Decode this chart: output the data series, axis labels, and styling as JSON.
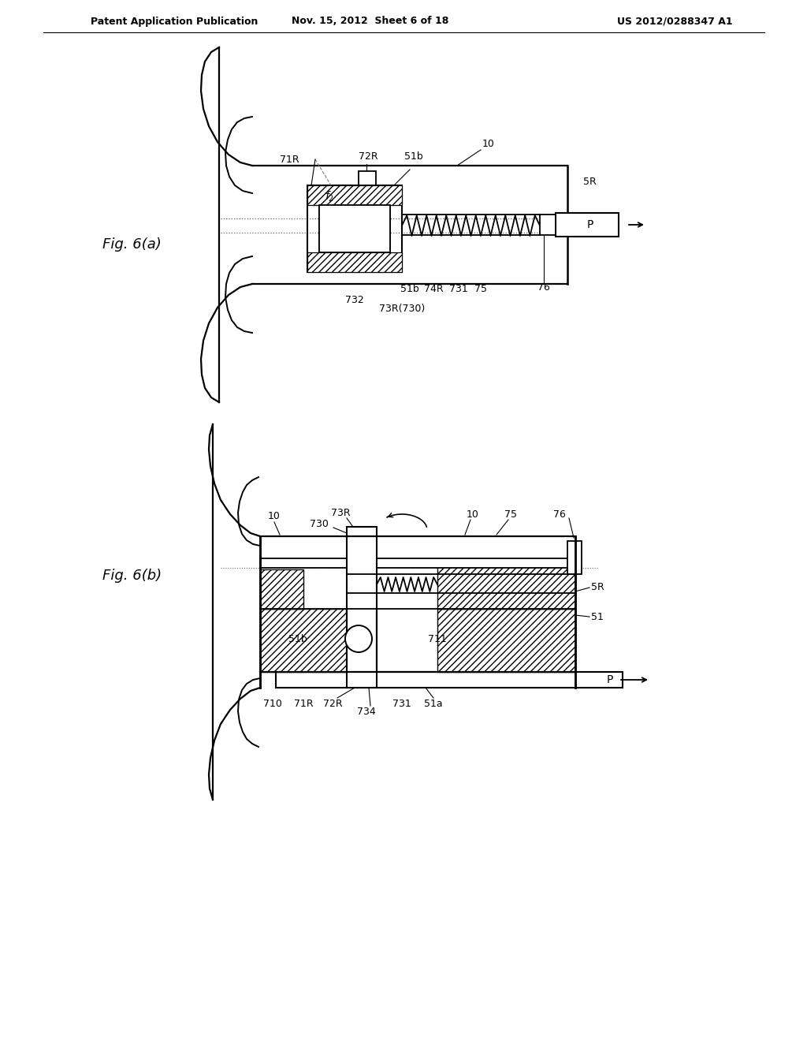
{
  "bg_color": "#ffffff",
  "header_left": "Patent Application Publication",
  "header_center": "Nov. 15, 2012  Sheet 6 of 18",
  "header_right": "US 2012/0288347 A1",
  "fig_a_label": "Fig. 6(a)",
  "fig_b_label": "Fig. 6(b)"
}
